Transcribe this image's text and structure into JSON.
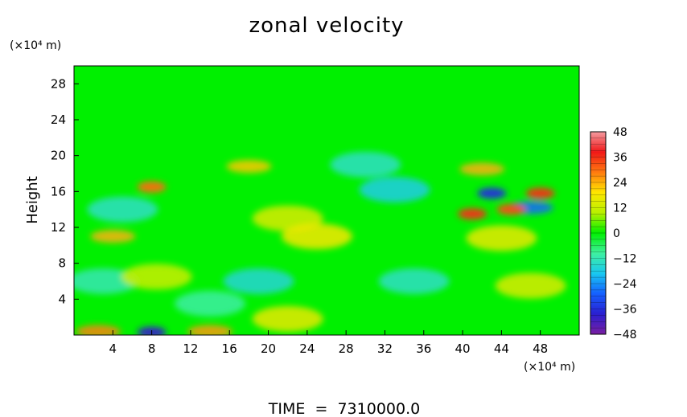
{
  "chart_data": {
    "type": "heatmap",
    "title": "zonal velocity",
    "ylabel": "Height",
    "y_unit_label": "(×10⁴ m)",
    "x_unit_label": "(×10⁴ m)",
    "xlim": [
      0,
      52
    ],
    "ylim": [
      0,
      30
    ],
    "x_ticks": [
      4,
      8,
      12,
      16,
      20,
      24,
      28,
      32,
      36,
      40,
      44,
      48
    ],
    "y_ticks": [
      4,
      8,
      12,
      16,
      20,
      24,
      28
    ],
    "colorbar": {
      "range": [
        -48,
        48
      ],
      "ticks": [
        48,
        36,
        24,
        12,
        0,
        -12,
        -24,
        -36,
        -48
      ]
    },
    "colormap": [
      "#7a1fa2",
      "#2a1fd0",
      "#1560ff",
      "#19c8f0",
      "#3ff0a0",
      "#00f000",
      "#b8f000",
      "#ffe600",
      "#ff7a10",
      "#f01818",
      "#f49aa0"
    ],
    "grid": false,
    "features": [
      {
        "x": 8,
        "y": 16.5,
        "value": 30
      },
      {
        "x": 18,
        "y": 18.8,
        "value": 22
      },
      {
        "x": 42,
        "y": 18.5,
        "value": 24
      },
      {
        "x": 43,
        "y": 15.8,
        "value": -36
      },
      {
        "x": 48,
        "y": 15.8,
        "value": 36
      },
      {
        "x": 47,
        "y": 14.2,
        "value": -28
      },
      {
        "x": 41,
        "y": 13.5,
        "value": 36
      },
      {
        "x": 45,
        "y": 14,
        "value": 33
      },
      {
        "x": 33,
        "y": 16.2,
        "value": -18
      },
      {
        "x": 30,
        "y": 19,
        "value": -14
      },
      {
        "x": 5,
        "y": 14,
        "value": -14
      },
      {
        "x": 22,
        "y": 13,
        "value": 14
      },
      {
        "x": 4,
        "y": 11,
        "value": 24
      },
      {
        "x": 25,
        "y": 11,
        "value": 18
      },
      {
        "x": 44,
        "y": 10.8,
        "value": 16
      },
      {
        "x": 3,
        "y": 6,
        "value": -12
      },
      {
        "x": 19,
        "y": 6,
        "value": -16
      },
      {
        "x": 35,
        "y": 6,
        "value": -14
      },
      {
        "x": 47,
        "y": 5.5,
        "value": 14
      },
      {
        "x": 8.5,
        "y": 6.5,
        "value": 12
      },
      {
        "x": 14,
        "y": 3.5,
        "value": -10
      },
      {
        "x": 8,
        "y": 0.3,
        "value": -40
      },
      {
        "x": 14,
        "y": 0.4,
        "value": 26
      },
      {
        "x": 2.5,
        "y": 0.4,
        "value": 28
      },
      {
        "x": 22,
        "y": 1.8,
        "value": 16
      }
    ],
    "footer": "TIME  =  7310000.0"
  }
}
